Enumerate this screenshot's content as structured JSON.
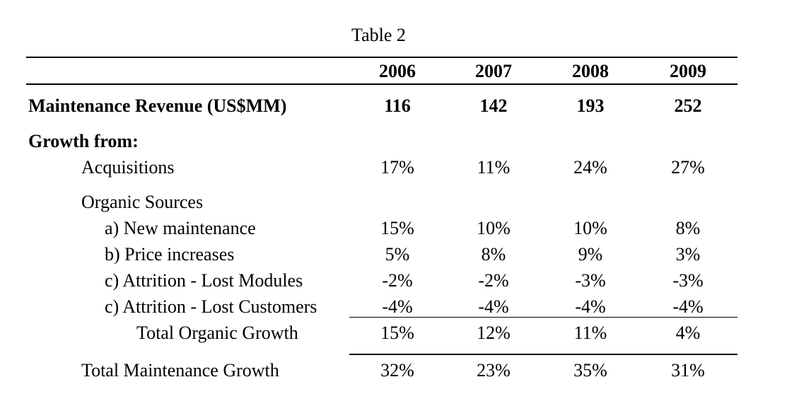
{
  "table": {
    "caption": "Table 2",
    "years": [
      "2006",
      "2007",
      "2008",
      "2009"
    ],
    "revenue": {
      "label": "Maintenance Revenue (US$MM)",
      "values": [
        "116",
        "142",
        "193",
        "252"
      ]
    },
    "growth_from_label": "Growth from:",
    "acquisitions": {
      "label": "Acquisitions",
      "values": [
        "17%",
        "11%",
        "24%",
        "27%"
      ]
    },
    "organic_label": "Organic Sources",
    "new_maintenance": {
      "label": "a) New maintenance",
      "values": [
        "15%",
        "10%",
        "10%",
        "8%"
      ]
    },
    "price_increases": {
      "label": "b) Price increases",
      "values": [
        "5%",
        "8%",
        "9%",
        "3%"
      ]
    },
    "lost_modules": {
      "label": "c) Attrition - Lost Modules",
      "values": [
        "-2%",
        "-2%",
        "-3%",
        "-3%"
      ]
    },
    "lost_customers": {
      "label": "c) Attrition - Lost Customers",
      "values": [
        "-4%",
        "-4%",
        "-4%",
        "-4%"
      ]
    },
    "total_organic": {
      "label": "Total Organic Growth",
      "values": [
        "15%",
        "12%",
        "11%",
        "4%"
      ]
    },
    "total_maintenance": {
      "label": "Total Maintenance Growth",
      "values": [
        "32%",
        "23%",
        "35%",
        "31%"
      ]
    }
  }
}
